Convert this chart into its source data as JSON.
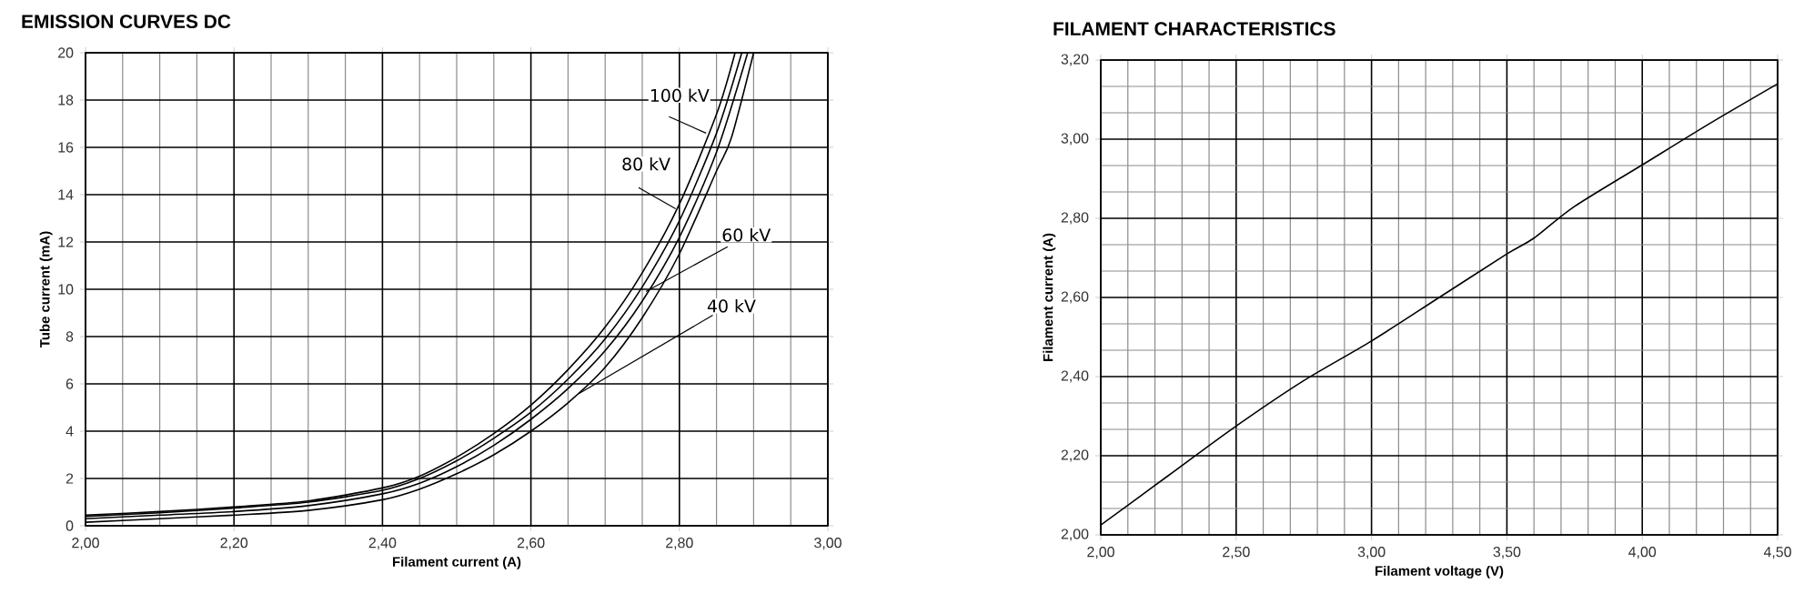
{
  "chart_data": [
    {
      "type": "line",
      "title": "EMISSION CURVES DC",
      "xlabel": "Filament current (A)",
      "ylabel": "Tube current (mA)",
      "xlim": [
        2.0,
        3.0
      ],
      "ylim": [
        0,
        20
      ],
      "xticks": [
        {
          "value": 2.0,
          "label": "2,00"
        },
        {
          "value": 2.2,
          "label": "2,20"
        },
        {
          "value": 2.4,
          "label": "2,40"
        },
        {
          "value": 2.6,
          "label": "2,60"
        },
        {
          "value": 2.8,
          "label": "2,80"
        },
        {
          "value": 3.0,
          "label": "3,00"
        }
      ],
      "yticks": [
        0,
        2,
        4,
        6,
        8,
        10,
        12,
        14,
        16,
        18,
        20
      ],
      "grid": true,
      "marker": "none",
      "line_style": "solid",
      "series": [
        {
          "color": "#000000",
          "x": [
            2.0,
            2.1,
            2.2,
            2.3,
            2.4,
            2.45,
            2.5,
            2.55,
            2.6,
            2.65,
            2.7,
            2.75,
            2.8,
            2.85,
            2.875
          ],
          "values": [
            0.45,
            0.6,
            0.8,
            1.05,
            1.6,
            2.1,
            2.9,
            3.9,
            5.1,
            6.6,
            8.4,
            10.7,
            13.6,
            17.4,
            20
          ]
        },
        {
          "color": "#000000",
          "x": [
            2.0,
            2.1,
            2.2,
            2.3,
            2.4,
            2.45,
            2.5,
            2.55,
            2.6,
            2.65,
            2.7,
            2.75,
            2.8,
            2.85,
            2.884
          ],
          "values": [
            0.4,
            0.55,
            0.75,
            1.0,
            1.5,
            2.0,
            2.75,
            3.7,
            4.8,
            6.2,
            7.9,
            10.1,
            12.9,
            16.6,
            20
          ]
        },
        {
          "color": "#000000",
          "x": [
            2.0,
            2.1,
            2.2,
            2.3,
            2.4,
            2.45,
            2.5,
            2.55,
            2.6,
            2.65,
            2.7,
            2.75,
            2.8,
            2.85,
            2.892
          ],
          "values": [
            0.3,
            0.45,
            0.6,
            0.85,
            1.35,
            1.8,
            2.5,
            3.4,
            4.5,
            5.8,
            7.4,
            9.5,
            12.2,
            15.8,
            20
          ]
        },
        {
          "color": "#000000",
          "x": [
            2.0,
            2.1,
            2.2,
            2.3,
            2.4,
            2.45,
            2.5,
            2.55,
            2.6,
            2.65,
            2.7,
            2.75,
            2.8,
            2.85,
            2.87,
            2.9
          ],
          "values": [
            0.15,
            0.3,
            0.45,
            0.65,
            1.1,
            1.55,
            2.2,
            3.0,
            4.0,
            5.2,
            6.7,
            8.8,
            11.5,
            15.0,
            16.4,
            20
          ]
        }
      ],
      "annotations": [
        {
          "text": "100 kV",
          "x": 2.836,
          "y": 16.6
        },
        {
          "text": "80 kV",
          "x": 2.795,
          "y": 13.4
        },
        {
          "text": "60 kV",
          "x": 2.755,
          "y": 9.9
        },
        {
          "text": "40 kV",
          "x": 2.665,
          "y": 5.6
        }
      ]
    },
    {
      "type": "line",
      "title": "FILAMENT CHARACTERISTICS",
      "xlabel": "Filament voltage (V)",
      "ylabel": "Filament current (A)",
      "xlim": [
        2.0,
        4.5
      ],
      "ylim": [
        2.0,
        3.2
      ],
      "xticks": [
        {
          "value": 2.0,
          "label": "2,00"
        },
        {
          "value": 2.5,
          "label": "2,50"
        },
        {
          "value": 3.0,
          "label": "3,00"
        },
        {
          "value": 3.5,
          "label": "3,50"
        },
        {
          "value": 4.0,
          "label": "4,00"
        },
        {
          "value": 4.5,
          "label": "4,50"
        }
      ],
      "yticks": [
        {
          "value": 2.0,
          "label": "2,00"
        },
        {
          "value": 2.2,
          "label": "2,20"
        },
        {
          "value": 2.4,
          "label": "2,40"
        },
        {
          "value": 2.6,
          "label": "2,60"
        },
        {
          "value": 2.8,
          "label": "2,80"
        },
        {
          "value": 3.0,
          "label": "3,00"
        },
        {
          "value": 3.2,
          "label": "3,20"
        }
      ],
      "grid": true,
      "marker": "none",
      "line_style": "solid",
      "series": [
        {
          "color": "#000000",
          "x": [
            2.0,
            2.25,
            2.5,
            2.75,
            3.0,
            3.25,
            3.5,
            3.6,
            3.75,
            4.0,
            4.25,
            4.5
          ],
          "values": [
            2.025,
            2.15,
            2.275,
            2.39,
            2.49,
            2.6,
            2.71,
            2.75,
            2.83,
            2.935,
            3.04,
            3.14
          ]
        }
      ]
    }
  ]
}
